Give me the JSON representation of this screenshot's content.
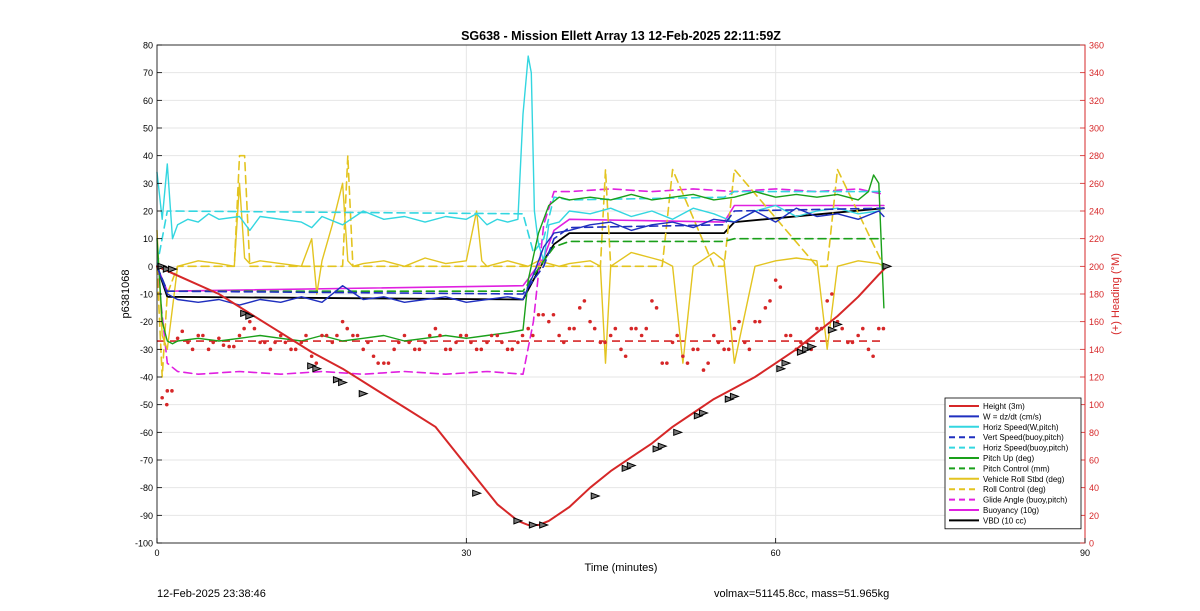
{
  "chart_data": {
    "type": "line",
    "title": "SG638 - Mission Ellett Array 13 12-Feb-2025 22:11:59Z",
    "xlabel": "Time (minutes)",
    "ylabel": "p6381068",
    "y2label": "(+) Heading (°M)",
    "xlim": [
      0,
      90
    ],
    "ylim": [
      -100,
      80
    ],
    "y2lim": [
      0,
      360
    ],
    "xticks": [
      0,
      30,
      60,
      90
    ],
    "yticks": [
      -100,
      -90,
      -80,
      -70,
      -60,
      -50,
      -40,
      -30,
      -20,
      -10,
      0,
      10,
      20,
      30,
      40,
      50,
      60,
      70,
      80
    ],
    "y2ticks": [
      0,
      20,
      40,
      60,
      80,
      100,
      120,
      140,
      160,
      180,
      200,
      220,
      240,
      260,
      280,
      300,
      320,
      340,
      360
    ],
    "grid": true,
    "legend_position": "bottom-right",
    "series": [
      {
        "name": "Height (3m)",
        "color": "#d62728",
        "style": "solid",
        "width": 2.0,
        "x": [
          0,
          3,
          6,
          9,
          12,
          15,
          18,
          21,
          24,
          27,
          30,
          33,
          35,
          36,
          37,
          38,
          40,
          42,
          44,
          46,
          48,
          50,
          52,
          54,
          56,
          58,
          60,
          62,
          64,
          66,
          68,
          70,
          70.8
        ],
        "y": [
          0,
          -5,
          -10,
          -17,
          -24,
          -31,
          -37,
          -44,
          -51,
          -58,
          -72,
          -86,
          -92,
          -93.5,
          -93.5,
          -92,
          -87,
          -80,
          -74,
          -69,
          -64,
          -58,
          -53,
          -48,
          -44,
          -40,
          -35,
          -30,
          -24,
          -18,
          -11,
          -3,
          0
        ]
      },
      {
        "name": "W = dz/dt (cm/s)",
        "color": "#1f2fbf",
        "style": "solid",
        "width": 1.4,
        "x": [
          0,
          0.5,
          1,
          2,
          4,
          6,
          8,
          10,
          12,
          14,
          16,
          18,
          20,
          22,
          24,
          26,
          28,
          30,
          32,
          34,
          35.5,
          36.5,
          37.5,
          38.5,
          40,
          42,
          44,
          46,
          48,
          50,
          52,
          54,
          56,
          58,
          60,
          62,
          64,
          66,
          68,
          70,
          70.5
        ],
        "y": [
          0,
          -5,
          -10,
          -12,
          -13,
          -12,
          -14,
          -12,
          -13,
          -11,
          -13,
          -7,
          -12,
          -11,
          -13,
          -12,
          -11,
          -13,
          -12,
          -11,
          -12,
          -3,
          7,
          12,
          13,
          15,
          16,
          13,
          15,
          16,
          14,
          17,
          16,
          20,
          16,
          21,
          18,
          19,
          17,
          20,
          18
        ]
      },
      {
        "name": "Horiz Speed(W,pitch)",
        "color": "#33d6e0",
        "style": "solid",
        "width": 1.4,
        "x": [
          0,
          0.5,
          1,
          1.5,
          2,
          3,
          4,
          5,
          6,
          8,
          9,
          10,
          12,
          14,
          15,
          16,
          18,
          20,
          22,
          24,
          26,
          28,
          30,
          31,
          32,
          33,
          34,
          35,
          35.5,
          36,
          36.3,
          36.6,
          37,
          37.5,
          38,
          39,
          40,
          42,
          44,
          46,
          48,
          50,
          52,
          54,
          56,
          58,
          60,
          62,
          64,
          66,
          68,
          70
        ],
        "y": [
          34,
          17,
          37,
          10,
          15,
          17,
          16,
          19,
          17,
          18,
          13,
          18,
          17,
          16,
          14,
          18,
          15,
          20,
          17,
          18,
          16,
          18,
          17,
          19,
          15,
          17,
          16,
          17,
          55,
          76,
          70,
          20,
          8,
          2,
          15,
          16,
          20,
          19,
          21,
          18,
          20,
          17,
          21,
          19,
          16,
          20,
          22,
          18,
          20,
          21,
          19,
          20
        ]
      },
      {
        "name": "Vert Speed(buoy,pitch)",
        "color": "#1f2fbf",
        "style": "dashed",
        "width": 1.6,
        "x": [
          0,
          1,
          35.5,
          37.5,
          38.5,
          40,
          55,
          56,
          70.5
        ],
        "y": [
          0,
          -9,
          -10,
          0,
          10,
          14,
          15,
          20,
          21
        ]
      },
      {
        "name": "Horiz Speed(buoy,pitch)",
        "color": "#33d6e0",
        "style": "dashed",
        "width": 1.6,
        "x": [
          0,
          1,
          35.5,
          36.5,
          37.5,
          38.5,
          40,
          55,
          56,
          70.5
        ],
        "y": [
          0,
          20,
          19,
          5,
          10,
          25,
          24,
          25,
          27,
          27
        ]
      },
      {
        "name": "Pitch Up (deg)",
        "color": "#1aa01a",
        "style": "solid",
        "width": 1.4,
        "x": [
          0,
          0.5,
          1,
          1.5,
          2,
          4,
          6,
          8,
          10,
          12,
          14,
          16,
          18,
          20,
          22,
          24,
          26,
          28,
          30,
          32,
          34,
          35.5,
          36,
          37,
          38,
          39,
          40,
          42,
          44,
          46,
          48,
          50,
          52,
          54,
          56,
          58,
          60,
          62,
          64,
          66,
          68,
          69,
          69.5,
          70,
          70.5
        ],
        "y": [
          10,
          -20,
          -27,
          -28,
          -27,
          -26,
          -27,
          -26,
          -25,
          -26,
          -27,
          -25,
          -27,
          -26,
          -25,
          -27,
          -26,
          -25,
          -26,
          -25,
          -24,
          -23,
          -5,
          12,
          22,
          25,
          24,
          25,
          24,
          26,
          24,
          25,
          26,
          24,
          25,
          27,
          25,
          26,
          25,
          26,
          24,
          27,
          33,
          30,
          -15
        ]
      },
      {
        "name": "Pitch Control (mm)",
        "color": "#1aa01a",
        "style": "dashed",
        "width": 1.6,
        "x": [
          0,
          1,
          35.5,
          37.5,
          38.5,
          40,
          55,
          56,
          70.5
        ],
        "y": [
          0,
          -9,
          -9,
          2,
          7,
          9,
          9,
          10,
          10
        ]
      },
      {
        "name": "Vehicle Roll Stbd (deg)",
        "color": "#e3c420",
        "style": "solid",
        "width": 1.4,
        "x": [
          0,
          0.5,
          1,
          1.5,
          2,
          4,
          6,
          7.5,
          8,
          8.5,
          9,
          10,
          12,
          14,
          15,
          15.5,
          16,
          17,
          18,
          18.5,
          19,
          20,
          22,
          24,
          26,
          28,
          30,
          31,
          31.5,
          32,
          34,
          35,
          36,
          37,
          38,
          39,
          40,
          42,
          43,
          43.5,
          44,
          46,
          48,
          49,
          50,
          51,
          52,
          54,
          55,
          56,
          58,
          60,
          62,
          64,
          65,
          66,
          68,
          70,
          70.5
        ],
        "y": [
          13,
          -25,
          -30,
          -15,
          0,
          2,
          1,
          0,
          30,
          3,
          1,
          2,
          1,
          0,
          10,
          -10,
          2,
          15,
          30,
          2,
          0,
          1,
          2,
          0,
          3,
          1,
          2,
          20,
          2,
          0,
          2,
          1,
          0,
          2,
          1,
          0,
          1,
          2,
          0,
          -35,
          0,
          5,
          3,
          2,
          0,
          -35,
          0,
          5,
          2,
          -35,
          0,
          2,
          3,
          2,
          -30,
          0,
          2,
          1,
          0
        ]
      },
      {
        "name": "Roll Control (deg)",
        "color": "#e3c420",
        "style": "dashed",
        "width": 1.6,
        "x": [
          0,
          0.5,
          1,
          2,
          7.5,
          8,
          8.5,
          9,
          15,
          18,
          18.5,
          19,
          35,
          40,
          42,
          43,
          43.5,
          44,
          48,
          49,
          50,
          54,
          55,
          56,
          64,
          65,
          66,
          70.5
        ],
        "y": [
          0,
          -40,
          -10,
          0,
          0,
          40,
          40,
          0,
          0,
          0,
          40,
          0,
          0,
          0,
          0,
          0,
          35,
          0,
          0,
          0,
          35,
          0,
          0,
          35,
          0,
          0,
          35,
          0
        ]
      },
      {
        "name": "Glide Angle (buoy,pitch)",
        "color": "#e020e0",
        "style": "dashed",
        "width": 1.6,
        "x": [
          0,
          1,
          2,
          4,
          8,
          12,
          16,
          20,
          24,
          28,
          32,
          35.5,
          36.5,
          37.5,
          38.5,
          40,
          44,
          48,
          52,
          56,
          60,
          64,
          68,
          70.5
        ],
        "y": [
          0,
          -35,
          -38,
          -39,
          -38,
          -39,
          -38,
          -39,
          -38,
          -39,
          -38,
          -39,
          -20,
          15,
          27,
          27,
          28,
          27,
          28,
          27,
          28,
          27,
          28,
          26
        ]
      },
      {
        "name": "Buoyancy (10g)",
        "color": "#e020e0",
        "style": "solid",
        "width": 1.6,
        "x": [
          0,
          1,
          35.5,
          37.5,
          38.5,
          40,
          55,
          56,
          70.5
        ],
        "y": [
          0,
          -9,
          -7,
          3,
          13,
          17,
          16,
          22,
          22
        ]
      },
      {
        "name": "VBD (10 cc)",
        "color": "#000000",
        "style": "solid",
        "width": 1.8,
        "x": [
          0,
          1,
          35.5,
          37.5,
          38.5,
          40,
          55,
          56,
          70.5
        ],
        "y": [
          0,
          -11,
          -12,
          2,
          8,
          12,
          12,
          16,
          21
        ]
      }
    ],
    "dive_markers": {
      "x": [
        0.5,
        1,
        1.5,
        8.5,
        9,
        15,
        15.5,
        17.5,
        18,
        20,
        31,
        35,
        36.5,
        37.5,
        42.5,
        45.5,
        46,
        48.5,
        49,
        50.5,
        52.5,
        53,
        55.5,
        56,
        60.5,
        61,
        62.5,
        63,
        63.5,
        65.5,
        66,
        70.8
      ],
      "y": [
        0,
        -1,
        -1,
        -17,
        -18,
        -36,
        -37,
        -41,
        -42,
        -46,
        -82,
        -92,
        -93.5,
        -93.5,
        -83,
        -73,
        -72,
        -66,
        -65,
        -60,
        -54,
        -53,
        -48,
        -47,
        -37,
        -35,
        -31,
        -30,
        -29,
        -23,
        -21,
        0
      ]
    },
    "heading": {
      "name": "(+) Heading (°M)",
      "color": "#d62728",
      "target": 146,
      "x": [
        0.5,
        1,
        2,
        3,
        4,
        5,
        6,
        7,
        8,
        9,
        10,
        11,
        12,
        13,
        14,
        15,
        16,
        17,
        18,
        19,
        20,
        21,
        22,
        23,
        24,
        25,
        26,
        27,
        28,
        29,
        30,
        31,
        32,
        33,
        34,
        35,
        36,
        37,
        38,
        39,
        40,
        41,
        42,
        43,
        44,
        45,
        46,
        47,
        48,
        49,
        50,
        51,
        52,
        53,
        54,
        55,
        56,
        57,
        58,
        59,
        60,
        61,
        62,
        63,
        64,
        65,
        66,
        67,
        68,
        69,
        70
      ],
      "y": [
        105,
        110,
        148,
        145,
        150,
        140,
        148,
        142,
        150,
        160,
        145,
        140,
        150,
        140,
        145,
        135,
        150,
        145,
        160,
        150,
        140,
        135,
        130,
        140,
        150,
        140,
        145,
        155,
        140,
        145,
        150,
        140,
        145,
        150,
        140,
        145,
        155,
        165,
        160,
        150,
        155,
        170,
        160,
        145,
        150,
        140,
        155,
        150,
        175,
        130,
        145,
        135,
        140,
        125,
        150,
        140,
        155,
        145,
        160,
        170,
        190,
        150,
        140,
        145,
        155,
        175,
        160,
        145,
        150,
        140,
        155
      ]
    }
  },
  "footer": {
    "left": "12-Feb-2025 23:38:46",
    "right": "volmax=51145.8cc, mass=51.965kg"
  }
}
